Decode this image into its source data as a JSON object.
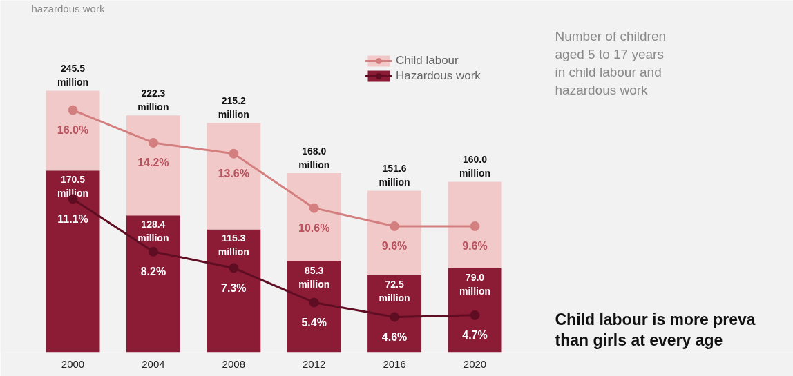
{
  "chart_data": {
    "type": "bar",
    "categories": [
      "2000",
      "2004",
      "2008",
      "2012",
      "2016",
      "2020"
    ],
    "stacked": true,
    "series": [
      {
        "name": "Hazardous work",
        "color": "#8c1b36",
        "values": [
          170.5,
          128.4,
          115.3,
          85.3,
          72.5,
          79.0
        ],
        "value_labels": [
          "170.5 million",
          "128.4 million",
          "115.3 million",
          "85.3 million",
          "72.5 million",
          "79.0 million"
        ]
      },
      {
        "name": "Child labour",
        "color": "#f2c9c9",
        "values": [
          75.0,
          93.9,
          99.9,
          82.7,
          79.1,
          81.0
        ]
      },
      {
        "type": "line",
        "axis": "y2",
        "color": "#d47f7f",
        "values": [
          16.0,
          14.2,
          13.6,
          10.6,
          9.6,
          9.6
        ],
        "value_labels": [
          "16.0%",
          "14.2%",
          "13.6%",
          "10.6%",
          "9.6%",
          "9.6%"
        ]
      },
      {
        "type": "line",
        "axis": "y2",
        "color": "#5e0d22",
        "values": [
          11.1,
          8.2,
          7.3,
          5.4,
          4.6,
          4.7
        ],
        "value_labels": [
          "11.1%",
          "8.2%",
          "7.3%",
          "5.4%",
          "4.6%",
          "4.7%"
        ]
      }
    ],
    "totals": [
      "245.5 million",
      "222.3 million",
      "215.2 million",
      "168.0 million",
      "151.6 million",
      "160.0 million"
    ],
    "ylim": [
      0,
      330.3
    ],
    "y2lim": [
      2.66,
      22.05
    ],
    "tick_labels": "x",
    "grid": false,
    "legend": "top right",
    "marker": "circle",
    "line_style": "solid",
    "annotations": [
      "hazardous work",
      "Number of children",
      "aged 5 to 17 years",
      "in child labour and",
      "hazardous work",
      "Child labour is more preva",
      "than girls at every age"
    ]
  }
}
